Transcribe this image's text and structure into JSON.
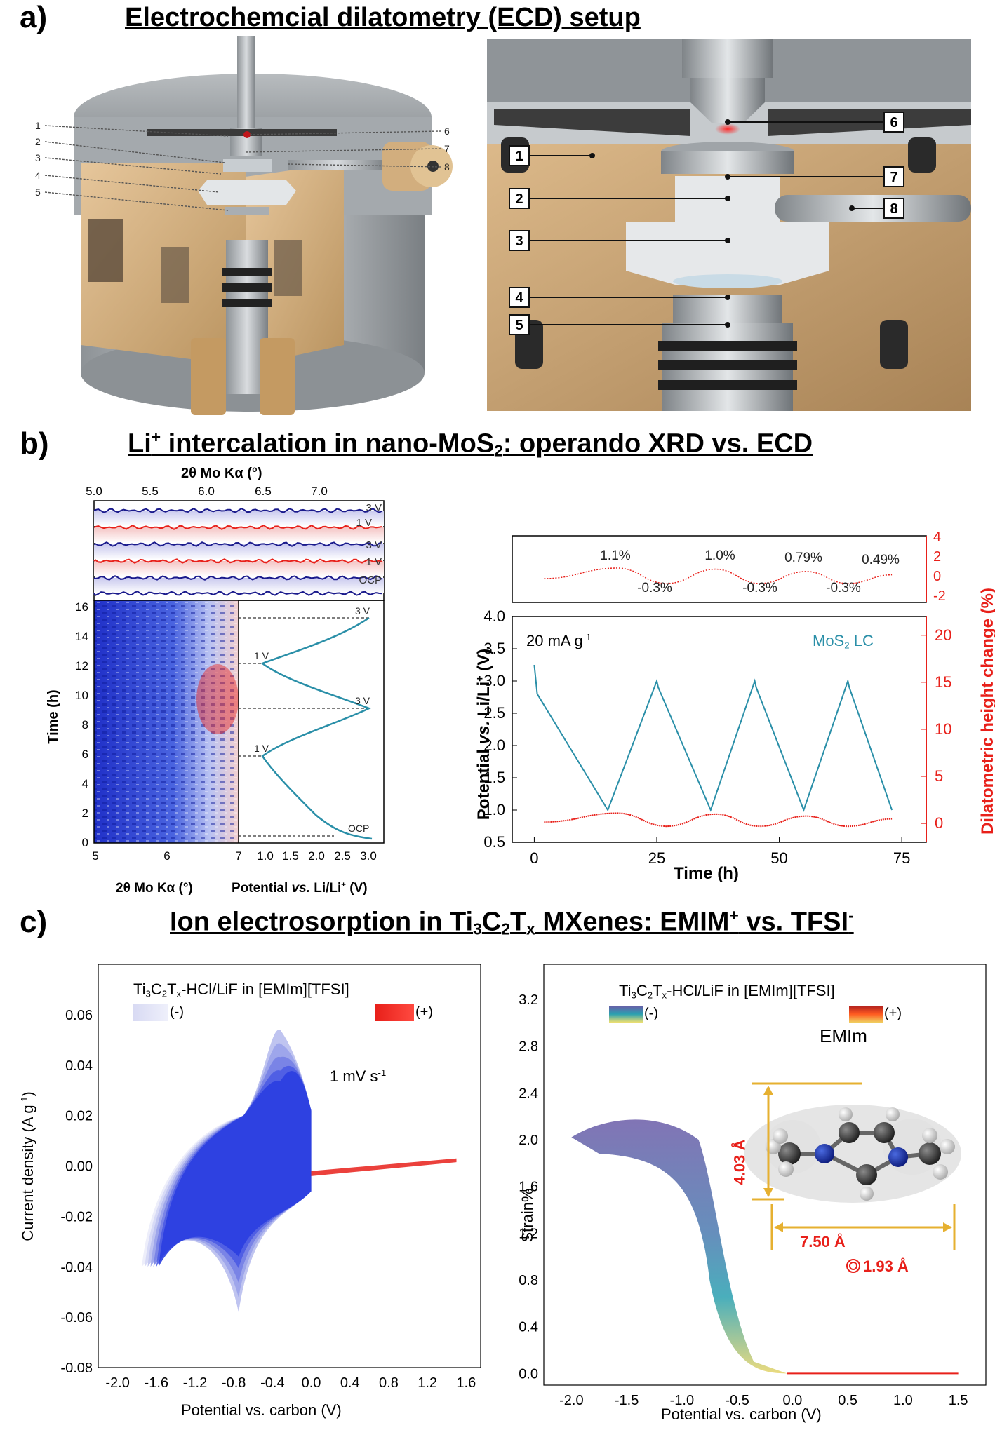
{
  "panel_a": {
    "label": "a)",
    "title": "Electrochemcial dilatometry (ECD) setup",
    "left_numbers": [
      "1",
      "2",
      "3",
      "4",
      "5"
    ],
    "right_numbers": [
      "6",
      "7",
      "8"
    ],
    "detail_left_numbers": [
      "1",
      "2",
      "3",
      "4",
      "5"
    ],
    "detail_right_numbers": [
      "6",
      "7",
      "8"
    ]
  },
  "panel_b": {
    "label": "b)",
    "title_pre": "Li",
    "title_sup": "+",
    "title_mid": " intercalation in nano-MoS",
    "title_sub": "2",
    "title_post": ": operando XRD vs. ECD",
    "xrd_top_axis_label": "2θ Mo Kα (°)",
    "xrd_top_ticks": [
      "5.0",
      "5.5",
      "6.0",
      "6.5",
      "7.0"
    ],
    "xrd_trace_labels": [
      "3 V",
      "1 V",
      "3 V",
      "1 V",
      "OCP"
    ],
    "heatmap_ylabel": "Time (h)",
    "heatmap_yticks": [
      "0",
      "2",
      "4",
      "6",
      "8",
      "10",
      "12",
      "14",
      "16"
    ],
    "heatmap_xticks": [
      "5",
      "6",
      "7"
    ],
    "heatmap_xlabel": "2θ Mo Kα (°)",
    "potential_xticks": [
      "1.0",
      "1.5",
      "2.0",
      "2.5",
      "3.0"
    ],
    "potential_xlabel_pre": "Potential ",
    "potential_xlabel_it": "vs.",
    "potential_xlabel_post": " Li/Li",
    "potential_xlabel_sup": "+",
    "potential_xlabel_unit": " (V)",
    "potential_markers": [
      "3 V",
      "1 V",
      "3 V",
      "1 V",
      "OCP"
    ],
    "ecd_inset_labels_top": [
      "1.1%",
      "1.0%",
      "0.79%",
      "0.49%"
    ],
    "ecd_inset_labels_bottom": [
      "-0.3%",
      "-0.3%",
      "-0.3%"
    ],
    "ecd_inset_right_ticks": [
      "4",
      "2",
      "0",
      "-2"
    ],
    "ecd_current_text": "20 mA g",
    "ecd_current_sup": "-1",
    "ecd_material_text": "MoS",
    "ecd_material_sub": "2",
    "ecd_material_post": " LC",
    "ecd_ylabel_left_pre": "Potential ",
    "ecd_ylabel_left_it": "vs.",
    "ecd_ylabel_left_post": " Li/Li",
    "ecd_ylabel_left_sup": "+",
    "ecd_ylabel_left_unit": " (V)",
    "ecd_ylabel_right": "Dilatometric height change (%)",
    "ecd_left_ticks": [
      "0.5",
      "1.0",
      "1.5",
      "2.0",
      "2.5",
      "3.0",
      "3.5",
      "4.0"
    ],
    "ecd_right_ticks": [
      "0",
      "5",
      "10",
      "15",
      "20"
    ],
    "ecd_xticks": [
      "0",
      "25",
      "50",
      "75"
    ],
    "ecd_xlabel": "Time (h)",
    "colors": {
      "potential": "#2a8fa8",
      "height": "#e8201a",
      "xrd_blue": "#1a1a8c",
      "xrd_red": "#e8201a"
    }
  },
  "panel_c": {
    "label": "c)",
    "title_pre": "Ion electrosorption in Ti",
    "title_s1": "3",
    "title_c": "C",
    "title_s2": "2",
    "title_t": "T",
    "title_s3": "x",
    "title_post": " MXenes: EMIM",
    "title_sup1": "+",
    "title_vs": " vs. TFSI",
    "title_sup2": "-",
    "cv_title_pre": "Ti",
    "cv_title_s1": "3",
    "cv_title_c": "C",
    "cv_title_s2": "2",
    "cv_title_t": "T",
    "cv_title_s3": "x",
    "cv_title_post": "-HCl/LiF in [EMIm][TFSI]",
    "cv_legend_neg": "(-)",
    "cv_legend_pos": "(+)",
    "cv_rate": "1 mV s",
    "cv_rate_sup": "-1",
    "cv_ylabel": "Current density (A g",
    "cv_ylabel_sup": "-1",
    "cv_ylabel_end": ")",
    "cv_yticks": [
      "0.06",
      "0.04",
      "0.02",
      "0.00",
      "-0.02",
      "-0.04",
      "-0.06",
      "-0.08"
    ],
    "cv_xticks": [
      "-2.0",
      "-1.6",
      "-1.2",
      "-0.8",
      "-0.4",
      "0.0",
      "0.4",
      "0.8",
      "1.2",
      "1.6"
    ],
    "cv_xlabel": "Potential vs. carbon (V)",
    "strain_title_post": "-HCl/LiF in [EMIm][TFSI]",
    "strain_legend_neg": "(-)",
    "strain_legend_pos": "(+)",
    "strain_ylabel": "Strain%",
    "strain_yticks": [
      "3.2",
      "2.8",
      "2.4",
      "2.0",
      "1.6",
      "1.2",
      "0.8",
      "0.4",
      "0.0"
    ],
    "strain_xticks": [
      "-2.0",
      "-1.5",
      "-1.0",
      "-0.5",
      "0.0",
      "0.5",
      "1.0",
      "1.5"
    ],
    "strain_xlabel": "Potential vs. carbon (V)",
    "molecule_name": "EMIm",
    "dim_height": "4.03 Å",
    "dim_width": "7.50 Å",
    "dim_diameter": "1.93 Å",
    "colors": {
      "cv_neg": "#2a3ee0",
      "cv_pos": "#e8201a",
      "dim": "#e6b030",
      "dim_text": "#e8201a"
    }
  }
}
